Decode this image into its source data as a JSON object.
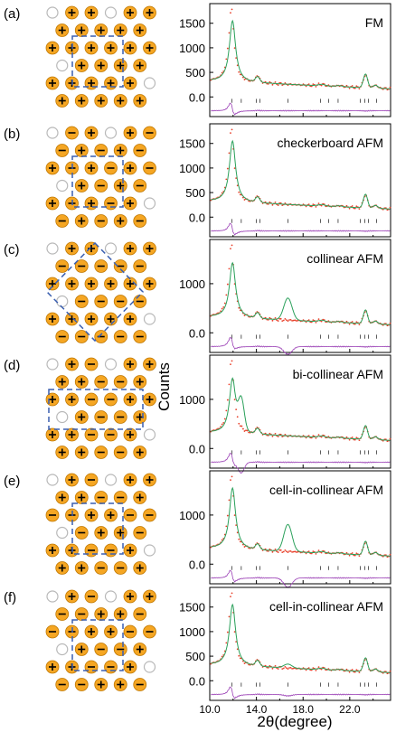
{
  "figure": {
    "y_axis_label": "Counts",
    "x_axis_label": "2θ(degree)",
    "colors": {
      "observed": "#e8402a",
      "calculated": "#2aa05a",
      "difference": "#9a3fb5",
      "bragg_ticks": "#333333",
      "cell_outline": "#3a5fb0",
      "spin_fill": "#f5a623",
      "spin_edge": "#c07800",
      "empty_site": "#b8b8b8"
    }
  },
  "chart_data": [
    {
      "type": "line",
      "panel": "(a)",
      "title": "FM",
      "xlim": [
        10,
        25.5
      ],
      "x_ticks": [
        "10.0",
        "14.0",
        "18.0",
        "22.0"
      ],
      "ylim": [
        -400,
        1900
      ],
      "y_ticks": [
        "0.0",
        "500",
        "1000",
        "1500"
      ],
      "extra_peak_height": 0,
      "second_main_peak": 0,
      "sim_strength": 1.0,
      "spin_pattern": "fm",
      "cell": "square"
    },
    {
      "type": "line",
      "panel": "(b)",
      "title": "checkerboard AFM",
      "xlim": [
        10,
        25.5
      ],
      "x_ticks": [
        "10.0",
        "14.0",
        "18.0",
        "22.0"
      ],
      "ylim": [
        -400,
        1900
      ],
      "y_ticks": [
        "0.0",
        "500",
        "1000",
        "1500"
      ],
      "extra_peak_height": 0,
      "second_main_peak": 0,
      "sim_strength": 1.0,
      "spin_pattern": "checker",
      "cell": "square"
    },
    {
      "type": "line",
      "panel": "(c)",
      "title": "collinear AFM",
      "xlim": [
        10,
        25.5
      ],
      "x_ticks": [
        "10.0",
        "14.0",
        "18.0",
        "22.0"
      ],
      "ylim": [
        -400,
        1900
      ],
      "y_ticks": [
        "0.0",
        "1000"
      ],
      "extra_peak_height": 450,
      "second_main_peak": 0,
      "sim_strength": 0.9,
      "spin_pattern": "stripe",
      "cell": "diamond"
    },
    {
      "type": "line",
      "panel": "(d)",
      "title": "bi-collinear AFM",
      "xlim": [
        10,
        25.5
      ],
      "x_ticks": [
        "10.0",
        "14.0",
        "18.0",
        "22.0"
      ],
      "ylim": [
        -400,
        1900
      ],
      "y_ticks": [
        "0.0",
        "1000"
      ],
      "extra_peak_height": 0,
      "second_main_peak": 600,
      "sim_strength": 0.9,
      "spin_pattern": "bicollinear",
      "cell": "wide"
    },
    {
      "type": "line",
      "panel": "(e)",
      "title": "cell-in-collinear AFM",
      "xlim": [
        10,
        25.5
      ],
      "x_ticks": [
        "10.0",
        "14.0",
        "18.0",
        "22.0"
      ],
      "ylim": [
        -400,
        1900
      ],
      "y_ticks": [
        "0.0",
        "1000"
      ],
      "extra_peak_height": 550,
      "second_main_peak": 0,
      "sim_strength": 1.0,
      "spin_pattern": "cell",
      "cell": "square"
    },
    {
      "type": "line",
      "panel": "(f)",
      "title": "cell-in-collinear AFM",
      "xlim": [
        10,
        25.5
      ],
      "x_ticks": [
        "10.0",
        "14.0",
        "18.0",
        "22.0"
      ],
      "ylim": [
        -400,
        1900
      ],
      "y_ticks": [
        "0.0",
        "500",
        "1000",
        "1500"
      ],
      "extra_peak_height": 80,
      "second_main_peak": 0,
      "sim_strength": 1.0,
      "spin_pattern": "cell2",
      "cell": "square"
    }
  ]
}
